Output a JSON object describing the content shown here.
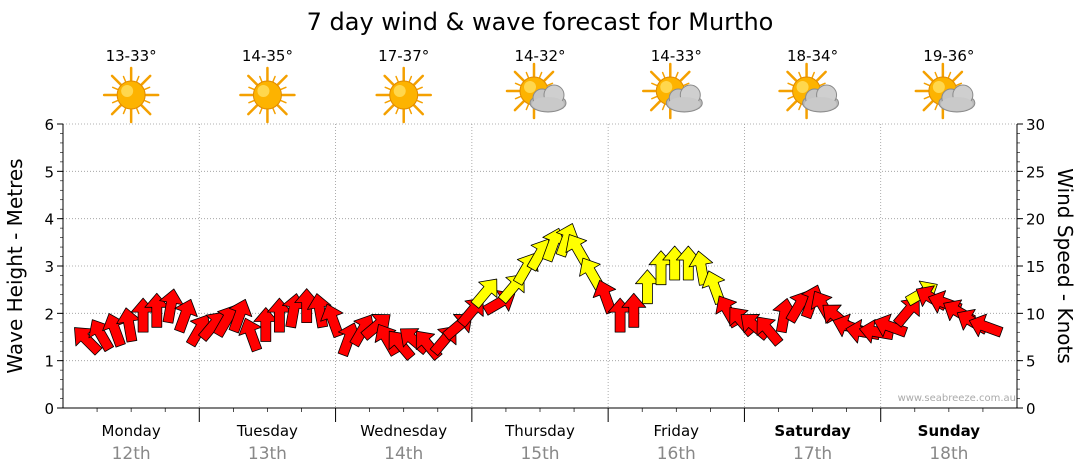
{
  "chart_data": {
    "type": "line",
    "title": "7 day wind & wave forecast for Murtho",
    "ylabel": "Wave Height - Metres",
    "y2label": "Wind Speed - Knots",
    "ylim": [
      0,
      6
    ],
    "y2lim": [
      0,
      30
    ],
    "yticks": [
      "0",
      "1",
      "2",
      "3",
      "4",
      "5",
      "6"
    ],
    "y2ticks": [
      "0",
      "5",
      "10",
      "15",
      "20",
      "25",
      "30"
    ],
    "grid": true,
    "watermark": "www.seabreeze.com.au",
    "days": [
      {
        "name": "Monday",
        "date": "12th",
        "temp": "13-33°",
        "weather": "sunny",
        "bold": false
      },
      {
        "name": "Tuesday",
        "date": "13th",
        "temp": "14-35°",
        "weather": "sunny",
        "bold": false
      },
      {
        "name": "Wednesday",
        "date": "14th",
        "temp": "17-37°",
        "weather": "sunny",
        "bold": false
      },
      {
        "name": "Thursday",
        "date": "15th",
        "temp": "14-32°",
        "weather": "partly-cloudy",
        "bold": false
      },
      {
        "name": "Friday",
        "date": "16th",
        "temp": "14-33°",
        "weather": "partly-cloudy",
        "bold": false
      },
      {
        "name": "Saturday",
        "date": "17th",
        "temp": "18-34°",
        "weather": "partly-cloudy",
        "bold": true
      },
      {
        "name": "Sunday",
        "date": "18th",
        "temp": "19-36°",
        "weather": "partly-cloudy",
        "bold": true
      }
    ],
    "series": [
      {
        "name": "Wind Speed (knots)",
        "unit": "knots",
        "colors": {
          "light": "#ff0000",
          "strong": "#ffff00",
          "outline": "#000000"
        },
        "strong_threshold": 12,
        "points": [
          {
            "t": 0.1,
            "v": 7,
            "dir": 315
          },
          {
            "t": 0.2,
            "v": 7.5,
            "dir": 330
          },
          {
            "t": 0.3,
            "v": 8,
            "dir": 340
          },
          {
            "t": 0.4,
            "v": 8.5,
            "dir": 350
          },
          {
            "t": 0.5,
            "v": 9.5,
            "dir": 0
          },
          {
            "t": 0.6,
            "v": 10,
            "dir": 0
          },
          {
            "t": 0.7,
            "v": 10.5,
            "dir": 10
          },
          {
            "t": 0.8,
            "v": 9.5,
            "dir": 20
          },
          {
            "t": 0.9,
            "v": 8,
            "dir": 30
          },
          {
            "t": 1.0,
            "v": 8.5,
            "dir": 40
          },
          {
            "t": 1.1,
            "v": 9,
            "dir": 30
          },
          {
            "t": 1.2,
            "v": 9.5,
            "dir": 20
          },
          {
            "t": 1.3,
            "v": 7.5,
            "dir": 340
          },
          {
            "t": 1.4,
            "v": 8.5,
            "dir": 0
          },
          {
            "t": 1.5,
            "v": 9.5,
            "dir": 0
          },
          {
            "t": 1.6,
            "v": 10,
            "dir": 10
          },
          {
            "t": 1.7,
            "v": 10.5,
            "dir": 0
          },
          {
            "t": 1.8,
            "v": 10,
            "dir": 350
          },
          {
            "t": 1.9,
            "v": 9,
            "dir": 340
          },
          {
            "t": 2.0,
            "v": 7,
            "dir": 20
          },
          {
            "t": 2.1,
            "v": 8,
            "dir": 30
          },
          {
            "t": 2.2,
            "v": 8.5,
            "dir": 50
          },
          {
            "t": 2.3,
            "v": 7,
            "dir": 330
          },
          {
            "t": 2.4,
            "v": 6.5,
            "dir": 320
          },
          {
            "t": 2.5,
            "v": 7,
            "dir": 310
          },
          {
            "t": 2.6,
            "v": 6.5,
            "dir": 320
          },
          {
            "t": 2.7,
            "v": 7,
            "dir": 40
          },
          {
            "t": 2.8,
            "v": 8.5,
            "dir": 50
          },
          {
            "t": 2.9,
            "v": 10,
            "dir": 40
          },
          {
            "t": 3.0,
            "v": 12,
            "dir": 40
          },
          {
            "t": 3.1,
            "v": 11,
            "dir": 60
          },
          {
            "t": 3.2,
            "v": 12.5,
            "dir": 40
          },
          {
            "t": 3.3,
            "v": 14.5,
            "dir": 30
          },
          {
            "t": 3.4,
            "v": 16,
            "dir": 30
          },
          {
            "t": 3.5,
            "v": 17,
            "dir": 20
          },
          {
            "t": 3.6,
            "v": 17.5,
            "dir": 20
          },
          {
            "t": 3.7,
            "v": 16.5,
            "dir": 330
          },
          {
            "t": 3.8,
            "v": 14,
            "dir": 330
          },
          {
            "t": 3.9,
            "v": 11.5,
            "dir": 340
          },
          {
            "t": 4.0,
            "v": 9.5,
            "dir": 0
          },
          {
            "t": 4.1,
            "v": 10,
            "dir": 0
          },
          {
            "t": 4.2,
            "v": 12.5,
            "dir": 0
          },
          {
            "t": 4.3,
            "v": 14.5,
            "dir": 0
          },
          {
            "t": 4.4,
            "v": 15,
            "dir": 0
          },
          {
            "t": 4.5,
            "v": 15,
            "dir": 0
          },
          {
            "t": 4.6,
            "v": 14.5,
            "dir": 350
          },
          {
            "t": 4.7,
            "v": 12.5,
            "dir": 340
          },
          {
            "t": 4.8,
            "v": 10,
            "dir": 330
          },
          {
            "t": 4.9,
            "v": 9,
            "dir": 320
          },
          {
            "t": 5.0,
            "v": 8.5,
            "dir": 310
          },
          {
            "t": 5.1,
            "v": 8,
            "dir": 320
          },
          {
            "t": 5.2,
            "v": 9.5,
            "dir": 10
          },
          {
            "t": 5.3,
            "v": 10.5,
            "dir": 30
          },
          {
            "t": 5.4,
            "v": 11,
            "dir": 20
          },
          {
            "t": 5.5,
            "v": 10.5,
            "dir": 330
          },
          {
            "t": 5.6,
            "v": 9.5,
            "dir": 310
          },
          {
            "t": 5.7,
            "v": 8.5,
            "dir": 290
          },
          {
            "t": 5.8,
            "v": 8,
            "dir": 280
          },
          {
            "t": 5.9,
            "v": 8,
            "dir": 280
          },
          {
            "t": 6.0,
            "v": 8.5,
            "dir": 290
          },
          {
            "t": 6.1,
            "v": 10,
            "dir": 40
          },
          {
            "t": 6.2,
            "v": 12,
            "dir": 60
          },
          {
            "t": 6.3,
            "v": 11.5,
            "dir": 300
          },
          {
            "t": 6.4,
            "v": 11,
            "dir": 290
          },
          {
            "t": 6.5,
            "v": 10,
            "dir": 300
          },
          {
            "t": 6.6,
            "v": 9,
            "dir": 300
          },
          {
            "t": 6.7,
            "v": 8.5,
            "dir": 290
          }
        ]
      }
    ]
  }
}
